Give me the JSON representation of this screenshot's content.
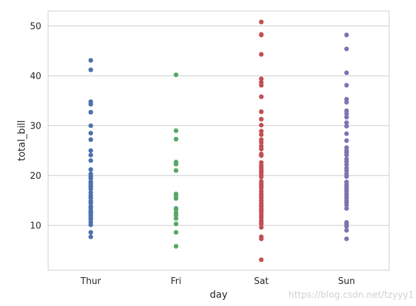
{
  "chart_data": {
    "type": "scatter",
    "title": "",
    "xlabel": "day",
    "ylabel": "total_bill",
    "categories": [
      "Thur",
      "Fri",
      "Sat",
      "Sun"
    ],
    "ylim": [
      1.0,
      53.0
    ],
    "yticks": [
      10,
      20,
      30,
      40,
      50
    ],
    "grid": "horizontal",
    "legend": "none",
    "series": [
      {
        "category": "Thur",
        "color": "#4c72b0",
        "values": [
          43.1,
          41.2,
          34.8,
          34.3,
          32.7,
          30.0,
          28.5,
          27.2,
          25.0,
          24.1,
          23.0,
          21.2,
          20.3,
          19.8,
          19.4,
          18.7,
          18.3,
          17.8,
          17.3,
          16.6,
          16.0,
          15.5,
          14.9,
          14.5,
          13.8,
          13.5,
          13.0,
          12.7,
          12.4,
          12.0,
          11.6,
          11.2,
          10.6,
          10.1,
          8.6,
          7.7
        ]
      },
      {
        "category": "Fri",
        "color": "#55a868",
        "values": [
          40.2,
          29.0,
          27.3,
          22.7,
          22.3,
          21.0,
          16.3,
          15.9,
          15.4,
          13.4,
          13.2,
          12.5,
          12.0,
          11.4,
          10.3,
          8.6,
          5.8
        ]
      },
      {
        "category": "Sat",
        "color": "#c44e52",
        "values": [
          50.8,
          48.3,
          48.2,
          44.3,
          39.4,
          38.7,
          38.1,
          35.8,
          32.8,
          31.3,
          30.1,
          28.9,
          28.2,
          27.2,
          26.6,
          25.9,
          25.3,
          24.3,
          24.0,
          22.6,
          22.0,
          21.5,
          21.0,
          20.7,
          20.2,
          19.7,
          18.8,
          18.3,
          17.9,
          17.5,
          16.9,
          16.4,
          16.0,
          15.5,
          15.0,
          14.5,
          14.1,
          13.8,
          13.3,
          13.0,
          12.6,
          12.1,
          11.6,
          11.0,
          10.6,
          10.3,
          9.6,
          7.7,
          7.3,
          3.1
        ]
      },
      {
        "category": "Sun",
        "color": "#8172b2",
        "values": [
          48.2,
          45.4,
          40.6,
          38.1,
          35.3,
          34.7,
          33.0,
          32.4,
          31.7,
          30.6,
          29.9,
          28.4,
          27.0,
          25.6,
          25.0,
          24.6,
          24.1,
          23.3,
          22.8,
          22.2,
          21.5,
          21.0,
          20.3,
          19.8,
          18.7,
          18.2,
          17.8,
          17.3,
          16.9,
          16.4,
          16.0,
          15.5,
          15.0,
          14.6,
          14.1,
          13.4,
          10.6,
          10.3,
          9.8,
          9.0,
          7.3
        ]
      }
    ]
  },
  "watermark": "https://blog.csdn.net/tzyyy1"
}
